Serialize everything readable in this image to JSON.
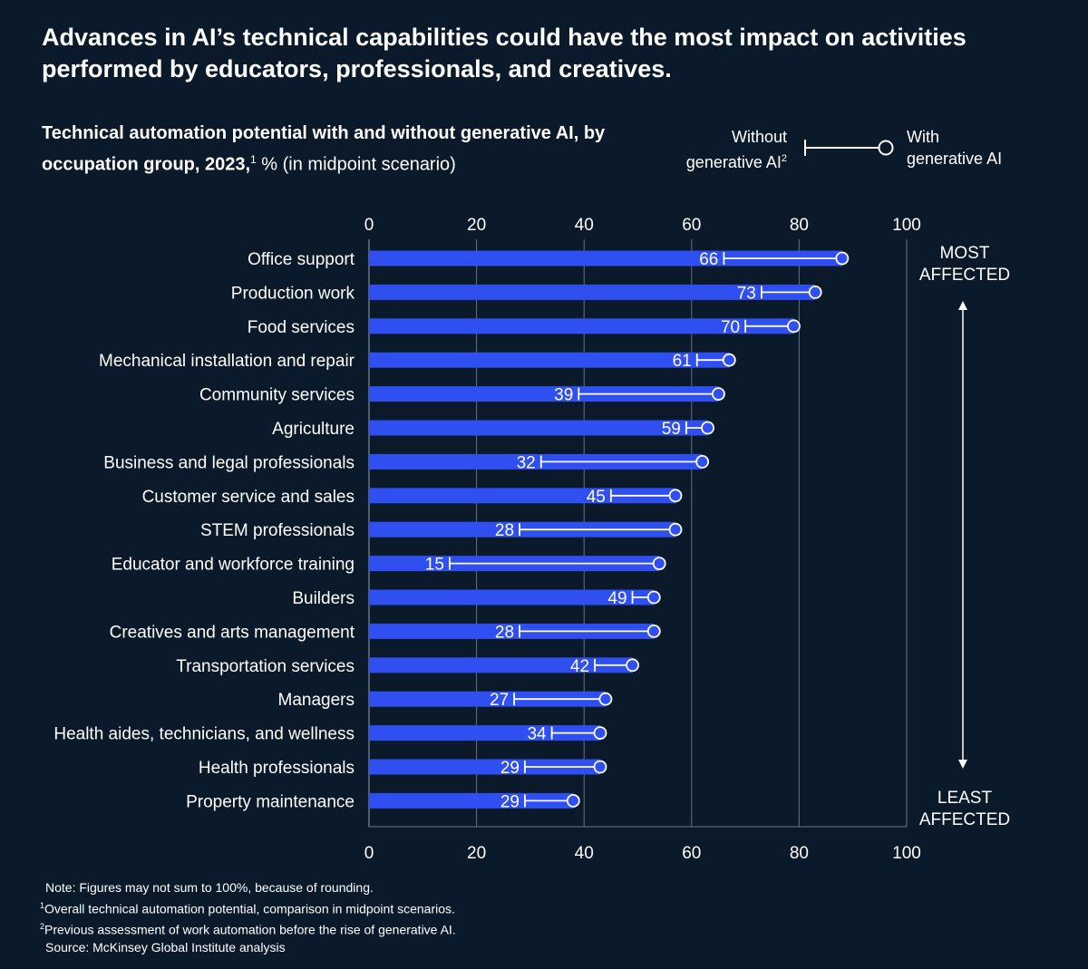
{
  "headline": "Advances in AI’s technical capabilities could have the most impact on activities performed by educators, professionals, and creatives.",
  "subtitle": {
    "bold": "Technical automation potential with and without generative AI, by occupation group, 2023,",
    "sup": "1",
    "rest": " % (in midpoint scenario)"
  },
  "legend": {
    "without_line1": "Without",
    "without_line2": "generative AI",
    "without_sup": "2",
    "with_line1": "With",
    "with_line2": "generative AI"
  },
  "annotations": {
    "most_line1": "MOST",
    "most_line2": "AFFECTED",
    "least_line1": "LEAST",
    "least_line2": "AFFECTED"
  },
  "footnotes": {
    "note": "Note: Figures may not sum to 100%, because of rounding.",
    "fn1_sup": "1",
    "fn1": "Overall technical automation potential, comparison in midpoint scenarios.",
    "fn2_sup": "2",
    "fn2": "Previous assessment of work automation before the rise of generative AI.",
    "source": "Source: McKinsey Global Institute analysis"
  },
  "colors": {
    "background": "#0b1a2a",
    "bar": "#2f4ff0",
    "line": "#ffffff",
    "grid": "#6b7480"
  },
  "chart_data": {
    "type": "bar",
    "orientation": "horizontal",
    "xlim": [
      0,
      100
    ],
    "xticks": [
      "0",
      "20",
      "40",
      "60",
      "80",
      "100"
    ],
    "categories": [
      "Office support",
      "Production work",
      "Food services",
      "Mechanical installation and repair",
      "Community services",
      "Agriculture",
      "Business and legal professionals",
      "Customer service and sales",
      "STEM professionals",
      "Educator and workforce training",
      "Builders",
      "Creatives and arts management",
      "Transportation services",
      "Managers",
      "Health aides, technicians, and wellness",
      "Health professionals",
      "Property maintenance"
    ],
    "series": [
      {
        "name": "Without generative AI",
        "values": [
          66,
          73,
          70,
          61,
          39,
          59,
          32,
          45,
          28,
          15,
          49,
          28,
          42,
          27,
          34,
          29,
          29
        ]
      },
      {
        "name": "With generative AI",
        "values": [
          88,
          83,
          79,
          67,
          65,
          63,
          62,
          57,
          57,
          54,
          53,
          53,
          49,
          44,
          43,
          43,
          38
        ]
      }
    ],
    "grid": true
  }
}
